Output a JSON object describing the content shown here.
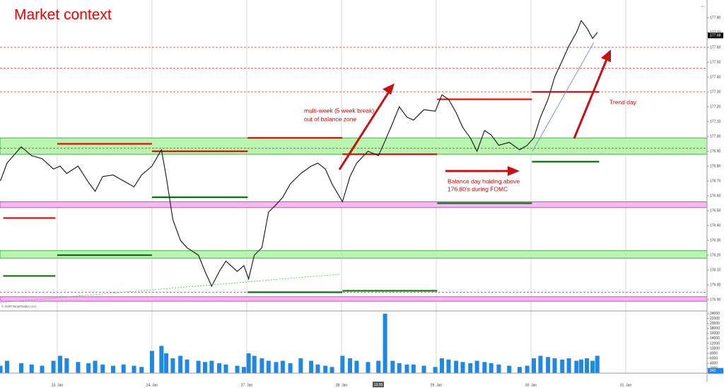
{
  "title": "Market context",
  "annotations": [
    "multi-week (5 week break)",
    "out of balance zone",
    "Balance day holding above",
    "176.80's during FOMC",
    "Trend day"
  ],
  "watermark": "© 2020 NinjaTrader, LLC",
  "time_marker": "13:55",
  "chart_data": [
    {
      "type": "line",
      "x": [
        -0.6,
        -0.53,
        -0.38,
        -0.27,
        -0.16,
        -0.04,
        0.03,
        0.1,
        0.22,
        0.33,
        0.4,
        0.48,
        0.59,
        0.7,
        0.81,
        0.89,
        1.0,
        1.1,
        1.15,
        1.22,
        1.3,
        1.37,
        1.49,
        1.56,
        1.63,
        1.71,
        1.78,
        1.9,
        1.97,
        2.02,
        2.08,
        2.16,
        2.23,
        2.31,
        2.38,
        2.46,
        2.57,
        2.68,
        2.75,
        2.83,
        2.9,
        3.01,
        3.09,
        3.16,
        3.28,
        3.39,
        3.46,
        3.54,
        3.61,
        3.69,
        3.76,
        3.87,
        3.99,
        4.06,
        4.13,
        4.21,
        4.28,
        4.36,
        4.43,
        4.51,
        4.58,
        4.66,
        4.77,
        4.88,
        4.96,
        5.03,
        5.1,
        5.18,
        5.25,
        5.33,
        5.4,
        5.48,
        5.53,
        5.59,
        5.65,
        5.7
      ],
      "series": [
        {
          "color": "#111111",
          "values": [
            176.7,
            176.82,
            176.93,
            176.87,
            176.85,
            176.78,
            176.8,
            176.75,
            176.8,
            176.69,
            176.63,
            176.73,
            176.74,
            176.7,
            176.66,
            176.74,
            176.8,
            176.91,
            176.73,
            176.44,
            176.3,
            176.25,
            176.2,
            176.09,
            175.99,
            176.09,
            176.16,
            176.09,
            176.13,
            176.04,
            176.2,
            176.25,
            176.49,
            176.54,
            176.59,
            176.68,
            176.75,
            176.8,
            176.82,
            176.78,
            176.68,
            176.56,
            176.73,
            176.82,
            176.9,
            176.87,
            176.97,
            177.09,
            177.2,
            177.13,
            177.11,
            177.18,
            177.17,
            177.28,
            177.25,
            177.16,
            177.06,
            176.99,
            176.9,
            177.04,
            177.01,
            176.94,
            176.96,
            176.91,
            176.94,
            176.99,
            177.13,
            177.25,
            177.4,
            177.51,
            177.61,
            177.7,
            177.78,
            177.73,
            177.66,
            177.7
          ]
        }
      ],
      "current_price": {
        "value": 177.68,
        "label": "177.68"
      },
      "xlim": [
        -0.604,
        6.858
      ],
      "xticks": [
        {
          "value": 0,
          "label": "23. Jan"
        },
        {
          "value": 1,
          "label": "24. Jan"
        },
        {
          "value": 2,
          "label": "27. Jan"
        },
        {
          "value": 3,
          "label": "28. Jan"
        },
        {
          "value": 4,
          "label": "29. Jan"
        },
        {
          "value": 5,
          "label": "30. Jan"
        },
        {
          "value": 6,
          "label": "31. Jan"
        }
      ],
      "ylim": [
        175.824,
        177.919
      ],
      "yticks": [
        {
          "value": 175.9,
          "label": "175.90"
        },
        {
          "value": 176.0,
          "label": "176.00"
        },
        {
          "value": 176.1,
          "label": "176.10"
        },
        {
          "value": 176.2,
          "label": "176.20"
        },
        {
          "value": 176.3,
          "label": "176.30"
        },
        {
          "value": 176.4,
          "label": "176.40"
        },
        {
          "value": 176.5,
          "label": "176.50"
        },
        {
          "value": 176.6,
          "label": "176.60"
        },
        {
          "value": 176.7,
          "label": "176.70"
        },
        {
          "value": 176.8,
          "label": "176.80"
        },
        {
          "value": 176.9,
          "label": "176.90"
        },
        {
          "value": 177.0,
          "label": "177.00"
        },
        {
          "value": 177.1,
          "label": "177.10"
        },
        {
          "value": 177.2,
          "label": "177.20"
        },
        {
          "value": 177.3,
          "label": "177.30"
        },
        {
          "value": 177.4,
          "label": "177.40"
        },
        {
          "value": 177.5,
          "label": "177.50"
        },
        {
          "value": 177.6,
          "label": "177.60"
        },
        {
          "value": 177.7,
          "label": "177.70"
        },
        {
          "value": 177.8,
          "label": "177.80"
        }
      ],
      "grid": "x",
      "zones": [
        {
          "range": [
            176.88,
            176.99
          ],
          "color": "#b8f5b0",
          "edge": "#2a9a2a"
        },
        {
          "range": [
            176.18,
            176.23
          ],
          "color": "#b8f5b0",
          "edge": "#2a9a2a"
        },
        {
          "range": [
            176.52,
            176.56
          ],
          "color": "#f7b8f2",
          "edge": "#c030c0"
        },
        {
          "range": [
            175.89,
            175.92
          ],
          "color": "#f7b8f2",
          "edge": "#c030c0"
        }
      ],
      "levels": [
        {
          "value": 177.6,
          "color": "#e03030"
        },
        {
          "value": 177.46,
          "color": "#e03030"
        },
        {
          "value": 177.3,
          "color": "#e03030"
        },
        {
          "value": 176.92,
          "color": "#e03030"
        },
        {
          "value": 175.95,
          "color": "#e03030"
        }
      ],
      "session_levels": [
        {
          "x": [
            -0.57,
            -0.02
          ],
          "value": 176.45,
          "color": "#e01010"
        },
        {
          "x": [
            -0.57,
            -0.02
          ],
          "value": 176.06,
          "color": "#107010"
        },
        {
          "x": [
            0,
            1
          ],
          "value": 176.95,
          "color": "#e01010"
        },
        {
          "x": [
            0,
            1
          ],
          "value": 176.2,
          "color": "#107010"
        },
        {
          "x": [
            1,
            2.01
          ],
          "value": 176.9,
          "color": "#e01010"
        },
        {
          "x": [
            1,
            2.01
          ],
          "value": 176.59,
          "color": "#107010"
        },
        {
          "x": [
            2.01,
            3.01
          ],
          "value": 176.99,
          "color": "#e01010"
        },
        {
          "x": [
            2.01,
            3.01
          ],
          "value": 175.95,
          "color": "#107010"
        },
        {
          "x": [
            3.01,
            4.01
          ],
          "value": 176.88,
          "color": "#e01010"
        },
        {
          "x": [
            3.01,
            4.01
          ],
          "value": 175.96,
          "color": "#107010"
        },
        {
          "x": [
            4.01,
            5.01
          ],
          "value": 177.25,
          "color": "#e01010"
        },
        {
          "x": [
            4.01,
            5.01
          ],
          "value": 176.55,
          "color": "#107010"
        },
        {
          "x": [
            5.01,
            5.72
          ],
          "value": 177.3,
          "color": "#e01010"
        },
        {
          "x": [
            5.01,
            5.72
          ],
          "value": 176.83,
          "color": "#107010"
        }
      ]
    },
    {
      "type": "bar",
      "color": "#1e88e5",
      "x": [
        -0.6,
        -0.53,
        -0.38,
        -0.27,
        -0.16,
        -0.04,
        0.03,
        0.1,
        0.22,
        0.33,
        0.4,
        0.48,
        0.59,
        0.7,
        0.81,
        0.89,
        1.0,
        1.1,
        1.15,
        1.22,
        1.3,
        1.37,
        1.49,
        1.56,
        1.63,
        1.71,
        1.78,
        1.9,
        1.97,
        2.02,
        2.08,
        2.16,
        2.23,
        2.31,
        2.38,
        2.46,
        2.57,
        2.68,
        2.75,
        2.83,
        2.9,
        3.01,
        3.09,
        3.16,
        3.28,
        3.39,
        3.46,
        3.54,
        3.61,
        3.69,
        3.76,
        3.87,
        3.99,
        4.06,
        4.13,
        4.21,
        4.28,
        4.36,
        4.43,
        4.51,
        4.58,
        4.66,
        4.77,
        4.88,
        4.96,
        5.03,
        5.1,
        5.18,
        5.25,
        5.33,
        5.4,
        5.48,
        5.53,
        5.59,
        5.65,
        5.7
      ],
      "values": [
        3000,
        5000,
        4000,
        3500,
        3000,
        5000,
        7000,
        6000,
        4500,
        4000,
        5000,
        3500,
        3000,
        3500,
        3000,
        2500,
        9000,
        11000,
        8000,
        6000,
        7000,
        5500,
        5000,
        4500,
        5000,
        4000,
        3500,
        3000,
        2500,
        8000,
        7000,
        6000,
        5000,
        4500,
        5000,
        4000,
        6000,
        5000,
        3500,
        3000,
        2500,
        7000,
        6000,
        5000,
        4500,
        5000,
        24000,
        5000,
        4000,
        3500,
        3500,
        3000,
        2500,
        6000,
        5500,
        5000,
        4500,
        4000,
        5000,
        4500,
        4000,
        3500,
        3000,
        2500,
        3000,
        6000,
        7000,
        6500,
        6000,
        5500,
        6000,
        5000,
        5500,
        6000,
        5000,
        7000
      ],
      "current_volume": {
        "value": 943,
        "label": "943"
      },
      "ylim": [
        0,
        25100
      ],
      "yticks": [
        2000,
        4000,
        6000,
        8000,
        10000,
        12000,
        14000,
        16000,
        18000,
        20000,
        22000,
        24000
      ]
    }
  ]
}
